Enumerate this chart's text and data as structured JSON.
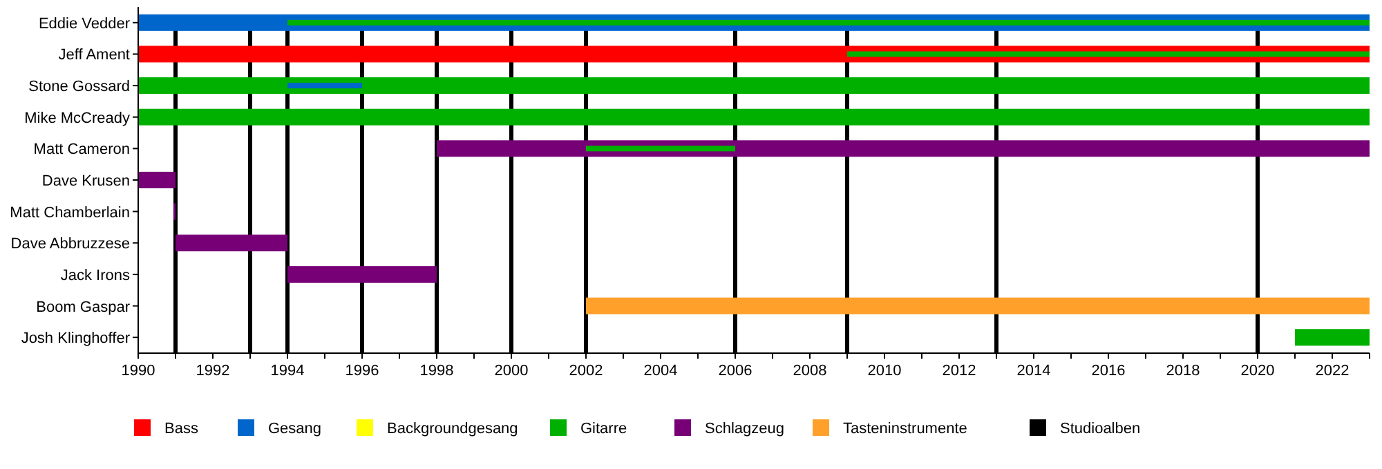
{
  "chart_data": {
    "type": "bar",
    "orientation": "horizontal",
    "categories": [
      "Eddie Vedder",
      "Jeff Ament",
      "Stone Gossard",
      "Mike McCready",
      "Matt Cameron",
      "Dave Krusen",
      "Matt Chamberlain",
      "Dave Abbruzzese",
      "Jack Irons",
      "Boom Gaspar",
      "Josh Klinghoffer"
    ],
    "series": [
      {
        "name": "Bass",
        "color": "#ff0000",
        "values": [
          null,
          33,
          null,
          null,
          null,
          null,
          null,
          null,
          null,
          null,
          null
        ],
        "base": [
          null,
          1990,
          null,
          null,
          null,
          null,
          null,
          null,
          null,
          null,
          null
        ]
      },
      {
        "name": "Gesang",
        "color": "#0066cc",
        "values": [
          33,
          null,
          null,
          null,
          null,
          null,
          null,
          null,
          null,
          null,
          null
        ],
        "base": [
          1990,
          null,
          null,
          null,
          null,
          null,
          null,
          null,
          null,
          null,
          null
        ]
      },
      {
        "name": "Backgroundgesang",
        "color": "#ffff00",
        "values": [
          null,
          null,
          null,
          null,
          null,
          null,
          null,
          null,
          null,
          null,
          null
        ],
        "base": [
          null,
          null,
          null,
          null,
          null,
          null,
          null,
          null,
          null,
          null,
          null
        ]
      },
      {
        "name": "Gitarre",
        "color": "#00b000",
        "values": [
          null,
          null,
          33,
          33,
          null,
          null,
          null,
          null,
          null,
          null,
          2
        ],
        "base": [
          null,
          null,
          1990,
          1990,
          null,
          null,
          null,
          null,
          null,
          null,
          2021
        ]
      },
      {
        "name": "Schlagzeug",
        "color": "#770077",
        "values": [
          null,
          null,
          null,
          null,
          25,
          1,
          0.05,
          3,
          4,
          null,
          null
        ],
        "base": [
          null,
          null,
          null,
          null,
          1998,
          1990,
          1990.95,
          1991,
          1994,
          null,
          null
        ]
      },
      {
        "name": "Tasteninstrumente",
        "color": "#ffa02a",
        "values": [
          null,
          null,
          null,
          null,
          null,
          null,
          null,
          null,
          null,
          21,
          null
        ],
        "base": [
          null,
          null,
          null,
          null,
          null,
          null,
          null,
          null,
          null,
          2002,
          null
        ]
      },
      {
        "color": "#0066cc",
        "values": [
          null,
          null,
          2,
          null,
          null,
          null,
          null,
          null,
          null,
          null,
          null
        ],
        "base": [
          null,
          null,
          1994,
          null,
          null,
          null,
          null,
          null,
          null,
          null,
          null
        ]
      },
      {
        "color": "#00b000",
        "values": [
          29,
          14,
          null,
          null,
          4,
          null,
          null,
          null,
          null,
          null,
          null
        ],
        "base": [
          1994,
          2009,
          null,
          null,
          2002,
          null,
          null,
          null,
          null,
          null,
          null
        ]
      }
    ],
    "xlim": [
      1990,
      2023
    ],
    "xticks": [
      1990,
      {
        "value": 1991,
        "label": null
      },
      1992,
      {
        "value": 1993,
        "label": null
      },
      1994,
      {
        "value": 1995,
        "label": null
      },
      1996,
      {
        "value": 1997,
        "label": null
      },
      1998,
      {
        "value": 1999,
        "label": null
      },
      2000,
      {
        "value": 2001,
        "label": null
      },
      2002,
      {
        "value": 2003,
        "label": null
      },
      2004,
      {
        "value": 2005,
        "label": null
      },
      2006,
      {
        "value": 2007,
        "label": null
      },
      2008,
      {
        "value": 2009,
        "label": null
      },
      2010,
      {
        "value": 2011,
        "label": null
      },
      2012,
      {
        "value": 2013,
        "label": null
      },
      2014,
      {
        "value": 2015,
        "label": null
      },
      2016,
      {
        "value": 2017,
        "label": null
      },
      2018,
      {
        "value": 2019,
        "label": null
      },
      2020,
      {
        "value": 2021,
        "label": null
      },
      2022,
      {
        "value": 2023,
        "label": null
      }
    ],
    "ref_lines": [
      {
        "axis": "x",
        "value": 1991,
        "label": "Studioalben",
        "color": "#000000"
      },
      {
        "axis": "x",
        "value": 1993,
        "color": "#000000"
      },
      {
        "axis": "x",
        "value": 1994,
        "color": "#000000"
      },
      {
        "axis": "x",
        "value": 1996,
        "color": "#000000"
      },
      {
        "axis": "x",
        "value": 1998,
        "color": "#000000"
      },
      {
        "axis": "x",
        "value": 2000,
        "color": "#000000"
      },
      {
        "axis": "x",
        "value": 2002,
        "color": "#000000"
      },
      {
        "axis": "x",
        "value": 2006,
        "color": "#000000"
      },
      {
        "axis": "x",
        "value": 2009,
        "color": "#000000"
      },
      {
        "axis": "x",
        "value": 2013,
        "color": "#000000"
      },
      {
        "axis": "x",
        "value": 2020,
        "color": "#000000"
      }
    ],
    "grid": false,
    "legend": "bottom"
  }
}
